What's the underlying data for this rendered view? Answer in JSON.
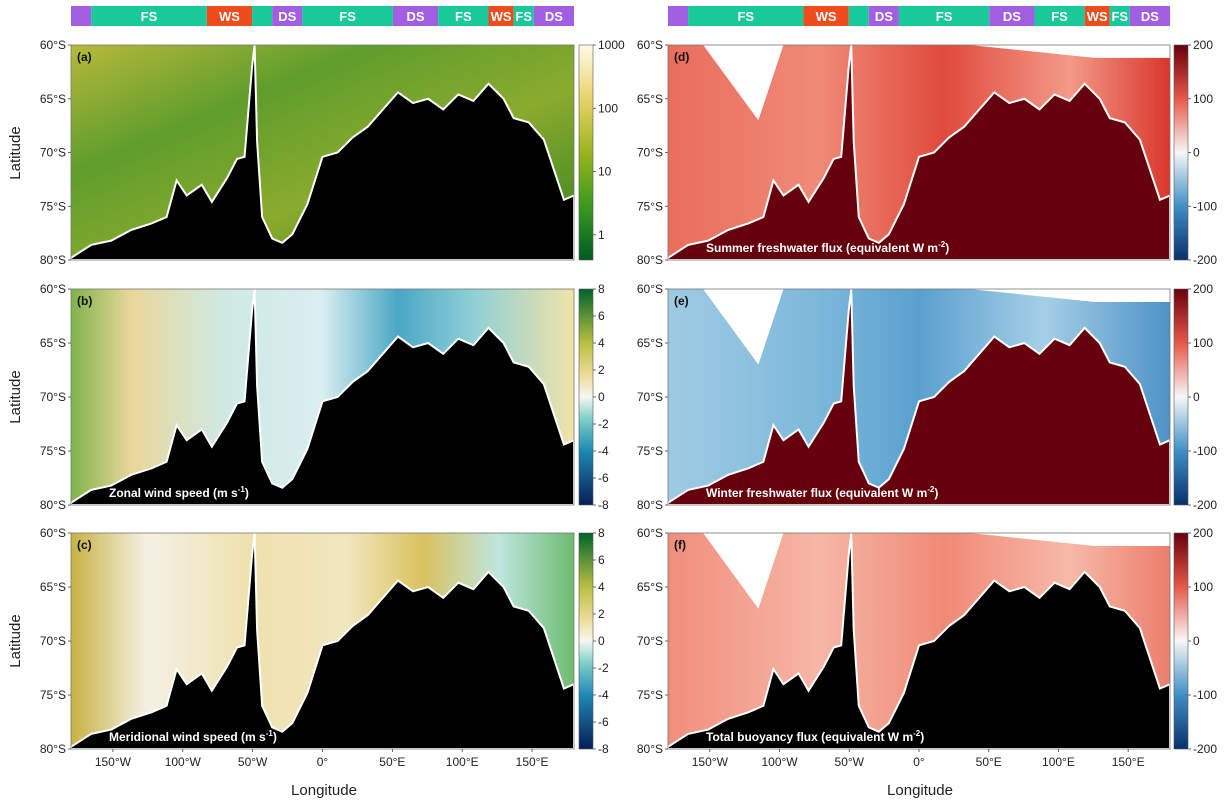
{
  "figure": {
    "x_axis_title": "Longitude",
    "y_axis_title": "Latitude",
    "lat_ticks": [
      "60°S",
      "65°S",
      "70°S",
      "75°S",
      "80°S"
    ],
    "lon_ticks_left": [
      "150°W",
      "100°W",
      "50°W",
      "0°",
      "50°E",
      "100°E",
      "150°E"
    ],
    "lon_ticks_right": [
      "150°W",
      "100°W",
      "50°W",
      "0°",
      "50°E",
      "100°E",
      "150°E"
    ],
    "regime_colors": {
      "FS": "#19c99a",
      "WS": "#ee4c1d",
      "DS": "#a25ee0"
    }
  },
  "regime_bar": {
    "left": [
      {
        "label": "",
        "regime": "DS",
        "w": 0.04
      },
      {
        "label": "FS",
        "regime": "FS",
        "w": 0.23
      },
      {
        "label": "WS",
        "regime": "WS",
        "w": 0.09
      },
      {
        "label": "",
        "regime": "FS",
        "w": 0.04
      },
      {
        "label": "DS",
        "regime": "DS",
        "w": 0.06
      },
      {
        "label": "FS",
        "regime": "FS",
        "w": 0.18
      },
      {
        "label": "DS",
        "regime": "DS",
        "w": 0.09
      },
      {
        "label": "FS",
        "regime": "FS",
        "w": 0.1
      },
      {
        "label": "WS",
        "regime": "WS",
        "w": 0.05
      },
      {
        "label": "FS",
        "regime": "FS",
        "w": 0.04
      },
      {
        "label": "DS",
        "regime": "DS",
        "w": 0.08
      }
    ],
    "right": [
      {
        "label": "",
        "regime": "DS",
        "w": 0.04
      },
      {
        "label": "FS",
        "regime": "FS",
        "w": 0.23
      },
      {
        "label": "WS",
        "regime": "WS",
        "w": 0.09
      },
      {
        "label": "",
        "regime": "FS",
        "w": 0.04
      },
      {
        "label": "DS",
        "regime": "DS",
        "w": 0.06
      },
      {
        "label": "FS",
        "regime": "FS",
        "w": 0.18
      },
      {
        "label": "DS",
        "regime": "DS",
        "w": 0.09
      },
      {
        "label": "FS",
        "regime": "FS",
        "w": 0.1
      },
      {
        "label": "WS",
        "regime": "WS",
        "w": 0.05
      },
      {
        "label": "FS",
        "regime": "FS",
        "w": 0.04
      },
      {
        "label": "DS",
        "regime": "DS",
        "w": 0.08
      }
    ]
  },
  "panels": [
    {
      "id": "a",
      "tag": "(a)",
      "caption": "",
      "unit_sup": "",
      "caption_end": "",
      "colorbar": {
        "ticks": [
          "1000",
          "100",
          "10",
          "1"
        ],
        "scale": "log"
      }
    },
    {
      "id": "b",
      "tag": "(b)",
      "caption": "Zonal wind speed (m s",
      "unit_sup": "-1",
      "caption_end": ")",
      "colorbar": {
        "ticks": [
          "8",
          "6",
          "4",
          "2",
          "0",
          "-2",
          "-4",
          "-6",
          "-8"
        ],
        "scale": "linear"
      }
    },
    {
      "id": "c",
      "tag": "(c)",
      "caption": "Meridional wind speed (m s",
      "unit_sup": "-1",
      "caption_end": ")",
      "colorbar": {
        "ticks": [
          "8",
          "6",
          "4",
          "2",
          "0",
          "-2",
          "-4",
          "-6",
          "-8"
        ],
        "scale": "linear"
      }
    },
    {
      "id": "d",
      "tag": "(d)",
      "caption": "Summer freshwater flux (equivalent W m",
      "unit_sup": "-2",
      "caption_end": ")",
      "colorbar": {
        "ticks": [
          "200",
          "100",
          "0",
          "-100",
          "-200"
        ],
        "scale": "linear"
      }
    },
    {
      "id": "e",
      "tag": "(e)",
      "caption": "Winter freshwater flux (equivalent W m",
      "unit_sup": "-2",
      "caption_end": ")",
      "colorbar": {
        "ticks": [
          "200",
          "100",
          "0",
          "-100",
          "-200"
        ],
        "scale": "linear"
      }
    },
    {
      "id": "f",
      "tag": "(f)",
      "caption": "Total buoyancy flux (equivalent W m",
      "unit_sup": "-2",
      "caption_end": ")",
      "colorbar": {
        "ticks": [
          "200",
          "100",
          "0",
          "-100",
          "-200"
        ],
        "scale": "linear"
      }
    }
  ]
}
